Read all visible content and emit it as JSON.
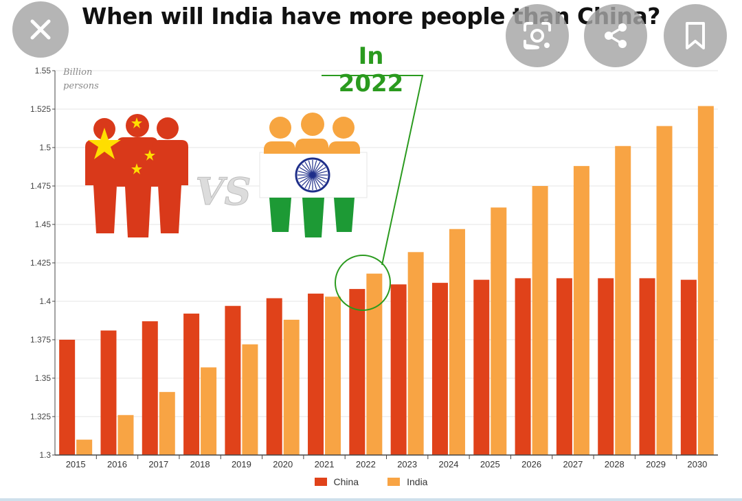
{
  "overlay_buttons": {
    "close": "close-icon",
    "lens": "lens-icon",
    "share": "share-icon",
    "bookmark": "bookmark-icon"
  },
  "illustration": {
    "vs_text": "VS"
  },
  "colors": {
    "china": "#e0421a",
    "india": "#f8a444",
    "callout": "#2a9a1e"
  },
  "chart_data": {
    "type": "bar",
    "title": "When will India have more people than China?",
    "callout": "In 2022",
    "unit_label_line1": "Billion",
    "unit_label_line2": "persons",
    "categories": [
      "2015",
      "2016",
      "2017",
      "2018",
      "2019",
      "2020",
      "2021",
      "2022",
      "2023",
      "2024",
      "2025",
      "2026",
      "2027",
      "2028",
      "2029",
      "2030"
    ],
    "series": [
      {
        "name": "China",
        "color": "#e0421a",
        "values": [
          1.375,
          1.381,
          1.387,
          1.392,
          1.397,
          1.402,
          1.405,
          1.408,
          1.411,
          1.412,
          1.414,
          1.415,
          1.415,
          1.415,
          1.415,
          1.414
        ]
      },
      {
        "name": "India",
        "color": "#f8a444",
        "values": [
          1.31,
          1.326,
          1.341,
          1.357,
          1.372,
          1.388,
          1.403,
          1.418,
          1.432,
          1.447,
          1.461,
          1.475,
          1.488,
          1.501,
          1.514,
          1.527
        ]
      }
    ],
    "ylim": [
      1.3,
      1.55
    ],
    "yticks": [
      "1.3",
      "1.325",
      "1.35",
      "1.375",
      "1.4",
      "1.425",
      "1.45",
      "1.475",
      "1.5",
      "1.525",
      "1.55"
    ],
    "grid": true,
    "legend_position": "bottom-center"
  }
}
